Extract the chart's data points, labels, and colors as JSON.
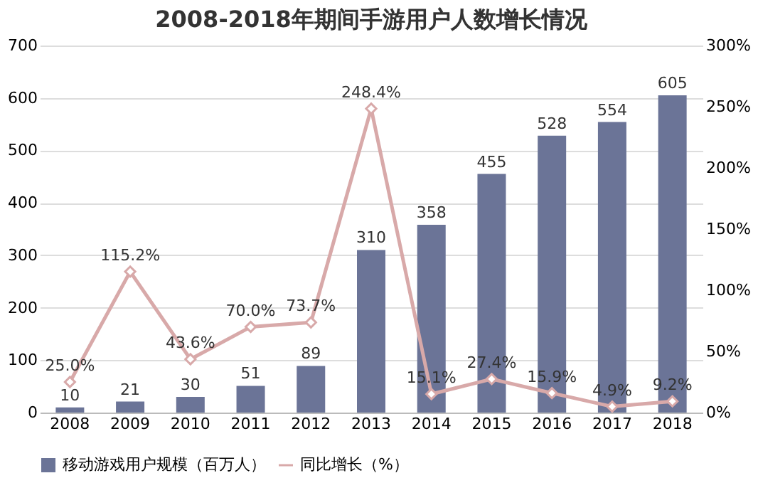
{
  "chart_data": {
    "type": "bar",
    "title": "2008-2018年期间手游用户人数增长情况",
    "categories": [
      "2008",
      "2009",
      "2010",
      "2011",
      "2012",
      "2013",
      "2014",
      "2015",
      "2016",
      "2017",
      "2018"
    ],
    "series": [
      {
        "name": "移动游戏用户规模（百万人）",
        "color": "#6b7497",
        "values": [
          10,
          21,
          30,
          51,
          89,
          310,
          358,
          455,
          528,
          554,
          605
        ]
      },
      {
        "name": "同比增长（%）",
        "type": "line",
        "axis": "y2",
        "color": "#d8a9a9",
        "marker": "diamond",
        "values": [
          25.0,
          115.2,
          43.6,
          70.0,
          73.7,
          248.4,
          15.1,
          27.4,
          15.9,
          4.9,
          9.2
        ],
        "value_labels": [
          "25.0%",
          "115.2%",
          "43.6%",
          "70.0%",
          "73.7%",
          "248.4%",
          "15.1%",
          "27.4%",
          "15.9%",
          "4.9%",
          "9.2%"
        ]
      }
    ],
    "ylim": [
      0,
      700
    ],
    "yticks": [
      0,
      100,
      200,
      300,
      400,
      500,
      600,
      700
    ],
    "y2lim": [
      0,
      300
    ],
    "y2ticks": [
      {
        "value": 0,
        "label": "0%"
      },
      {
        "value": 50,
        "label": "50%"
      },
      {
        "value": 100,
        "label": "100%"
      },
      {
        "value": 150,
        "label": "150%"
      },
      {
        "value": 200,
        "label": "200%"
      },
      {
        "value": 250,
        "label": "250%"
      },
      {
        "value": 300,
        "label": "300%"
      }
    ],
    "data_labels": true,
    "grid": "y",
    "legend": "bottom"
  }
}
